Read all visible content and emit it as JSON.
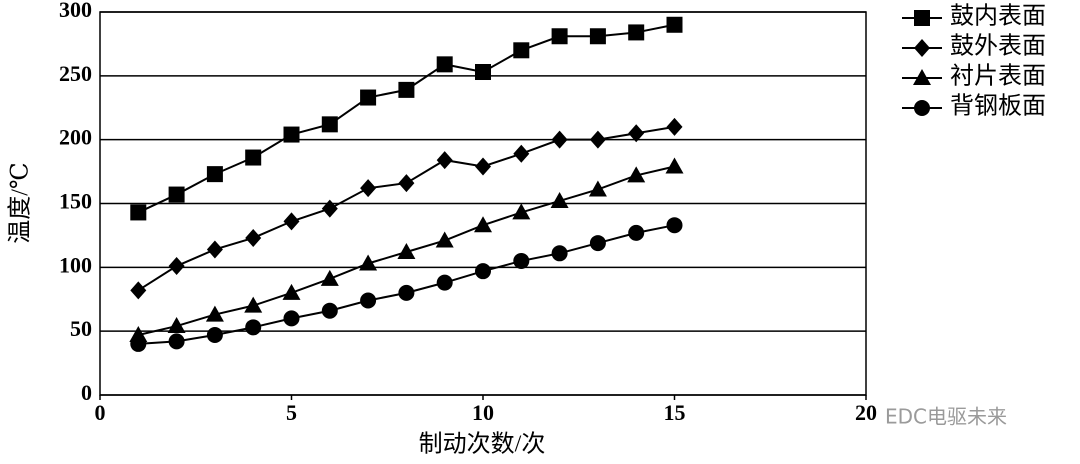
{
  "chart_data": {
    "type": "line",
    "x": [
      1,
      2,
      3,
      4,
      5,
      6,
      7,
      8,
      9,
      10,
      11,
      12,
      13,
      14,
      15
    ],
    "series": [
      {
        "name": "鼓内表面",
        "color": "#000000",
        "marker": "square",
        "values": [
          143,
          157,
          173,
          186,
          204,
          212,
          233,
          239,
          259,
          253,
          270,
          281,
          281,
          284,
          290
        ]
      },
      {
        "name": "鼓外表面",
        "color": "#000000",
        "marker": "diamond",
        "values": [
          82,
          101,
          114,
          123,
          136,
          146,
          162,
          166,
          184,
          179,
          189,
          200,
          200,
          205,
          210
        ]
      },
      {
        "name": "衬片表面",
        "color": "#000000",
        "marker": "triangle",
        "values": [
          47,
          54,
          63,
          70,
          80,
          91,
          103,
          112,
          121,
          133,
          143,
          152,
          161,
          172,
          179
        ]
      },
      {
        "name": "背钢板面",
        "color": "#000000",
        "marker": "circle",
        "values": [
          40,
          42,
          47,
          53,
          60,
          66,
          74,
          80,
          88,
          97,
          105,
          111,
          119,
          127,
          133
        ]
      }
    ],
    "xlim": [
      0,
      20
    ],
    "xticks": [
      0,
      5,
      10,
      15,
      20
    ],
    "ylim": [
      0,
      300
    ],
    "yticks": [
      0,
      50,
      100,
      150,
      200,
      250,
      300
    ],
    "grid": true,
    "x_label": "制动次数/次",
    "y_label": "温度/℃",
    "legend_position": "right",
    "watermark": "EDC电驱未来"
  }
}
